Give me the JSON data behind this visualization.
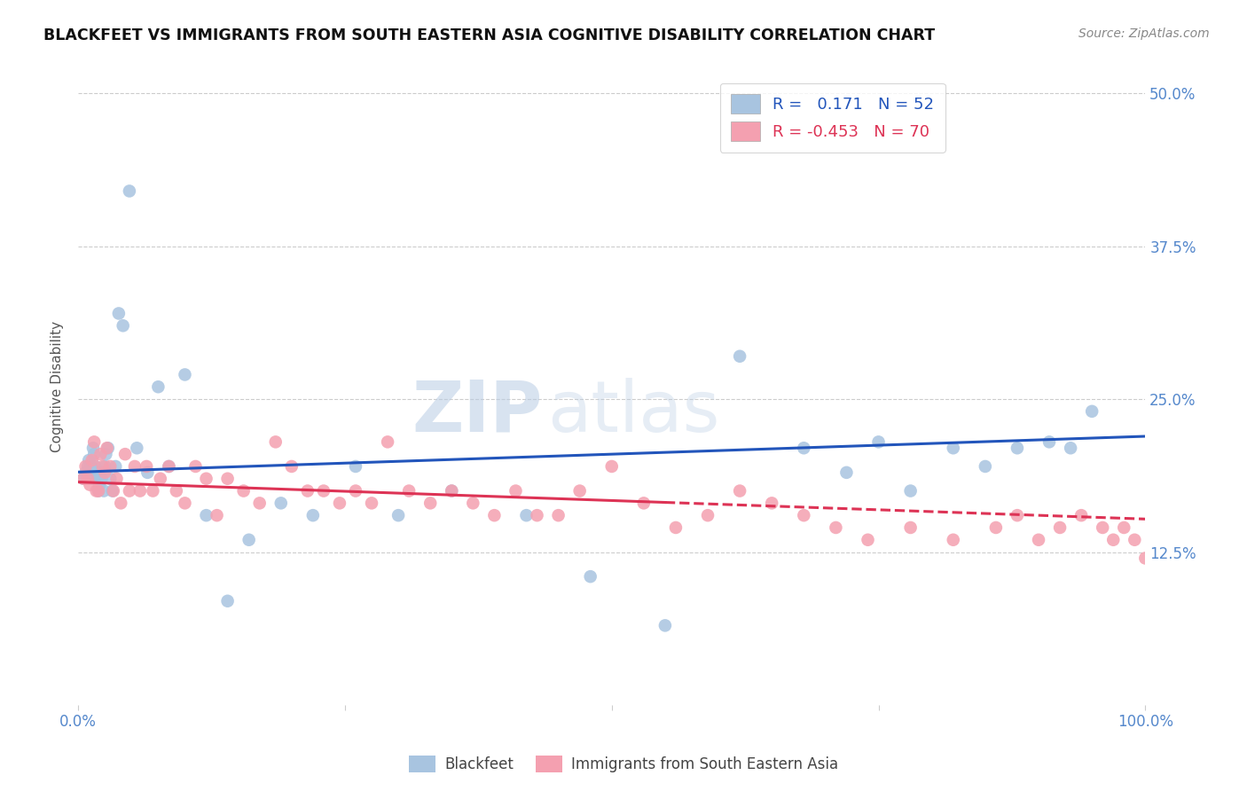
{
  "title": "BLACKFEET VS IMMIGRANTS FROM SOUTH EASTERN ASIA COGNITIVE DISABILITY CORRELATION CHART",
  "source": "Source: ZipAtlas.com",
  "ylabel": "Cognitive Disability",
  "yticks": [
    0.0,
    0.125,
    0.25,
    0.375,
    0.5
  ],
  "ytick_labels": [
    "",
    "12.5%",
    "25.0%",
    "37.5%",
    "50.0%"
  ],
  "xlim": [
    0.0,
    1.0
  ],
  "ylim": [
    0.0,
    0.52
  ],
  "blue_R": 0.171,
  "blue_N": 52,
  "pink_R": -0.453,
  "pink_N": 70,
  "legend_label_blue": "Blackfeet",
  "legend_label_pink": "Immigrants from South Eastern Asia",
  "blue_color": "#a8c4e0",
  "pink_color": "#f4a0b0",
  "blue_line_color": "#2255bb",
  "pink_line_color": "#dd3355",
  "blue_x": [
    0.005,
    0.007,
    0.009,
    0.01,
    0.012,
    0.013,
    0.014,
    0.015,
    0.016,
    0.017,
    0.018,
    0.019,
    0.02,
    0.021,
    0.022,
    0.024,
    0.025,
    0.026,
    0.028,
    0.03,
    0.032,
    0.035,
    0.038,
    0.042,
    0.048,
    0.055,
    0.065,
    0.075,
    0.085,
    0.1,
    0.12,
    0.14,
    0.16,
    0.19,
    0.22,
    0.26,
    0.3,
    0.35,
    0.42,
    0.48,
    0.55,
    0.62,
    0.68,
    0.72,
    0.75,
    0.78,
    0.82,
    0.85,
    0.88,
    0.91,
    0.93,
    0.95
  ],
  "blue_y": [
    0.185,
    0.19,
    0.195,
    0.2,
    0.195,
    0.185,
    0.21,
    0.205,
    0.195,
    0.19,
    0.185,
    0.175,
    0.18,
    0.19,
    0.185,
    0.175,
    0.195,
    0.205,
    0.21,
    0.185,
    0.175,
    0.195,
    0.32,
    0.31,
    0.42,
    0.21,
    0.19,
    0.26,
    0.195,
    0.27,
    0.155,
    0.085,
    0.135,
    0.165,
    0.155,
    0.195,
    0.155,
    0.175,
    0.155,
    0.105,
    0.065,
    0.285,
    0.21,
    0.19,
    0.215,
    0.175,
    0.21,
    0.195,
    0.21,
    0.215,
    0.21,
    0.24
  ],
  "pink_x": [
    0.005,
    0.007,
    0.009,
    0.011,
    0.013,
    0.015,
    0.017,
    0.019,
    0.021,
    0.023,
    0.025,
    0.027,
    0.03,
    0.033,
    0.036,
    0.04,
    0.044,
    0.048,
    0.053,
    0.058,
    0.064,
    0.07,
    0.077,
    0.085,
    0.092,
    0.1,
    0.11,
    0.12,
    0.13,
    0.14,
    0.155,
    0.17,
    0.185,
    0.2,
    0.215,
    0.23,
    0.245,
    0.26,
    0.275,
    0.29,
    0.31,
    0.33,
    0.35,
    0.37,
    0.39,
    0.41,
    0.43,
    0.45,
    0.47,
    0.5,
    0.53,
    0.56,
    0.59,
    0.62,
    0.65,
    0.68,
    0.71,
    0.74,
    0.78,
    0.82,
    0.86,
    0.88,
    0.9,
    0.92,
    0.94,
    0.96,
    0.97,
    0.98,
    0.99,
    1.0
  ],
  "pink_y": [
    0.185,
    0.195,
    0.185,
    0.18,
    0.2,
    0.215,
    0.175,
    0.175,
    0.205,
    0.195,
    0.19,
    0.21,
    0.195,
    0.175,
    0.185,
    0.165,
    0.205,
    0.175,
    0.195,
    0.175,
    0.195,
    0.175,
    0.185,
    0.195,
    0.175,
    0.165,
    0.195,
    0.185,
    0.155,
    0.185,
    0.175,
    0.165,
    0.215,
    0.195,
    0.175,
    0.175,
    0.165,
    0.175,
    0.165,
    0.215,
    0.175,
    0.165,
    0.175,
    0.165,
    0.155,
    0.175,
    0.155,
    0.155,
    0.175,
    0.195,
    0.165,
    0.145,
    0.155,
    0.175,
    0.165,
    0.155,
    0.145,
    0.135,
    0.145,
    0.135,
    0.145,
    0.155,
    0.135,
    0.145,
    0.155,
    0.145,
    0.135,
    0.145,
    0.135,
    0.12
  ]
}
